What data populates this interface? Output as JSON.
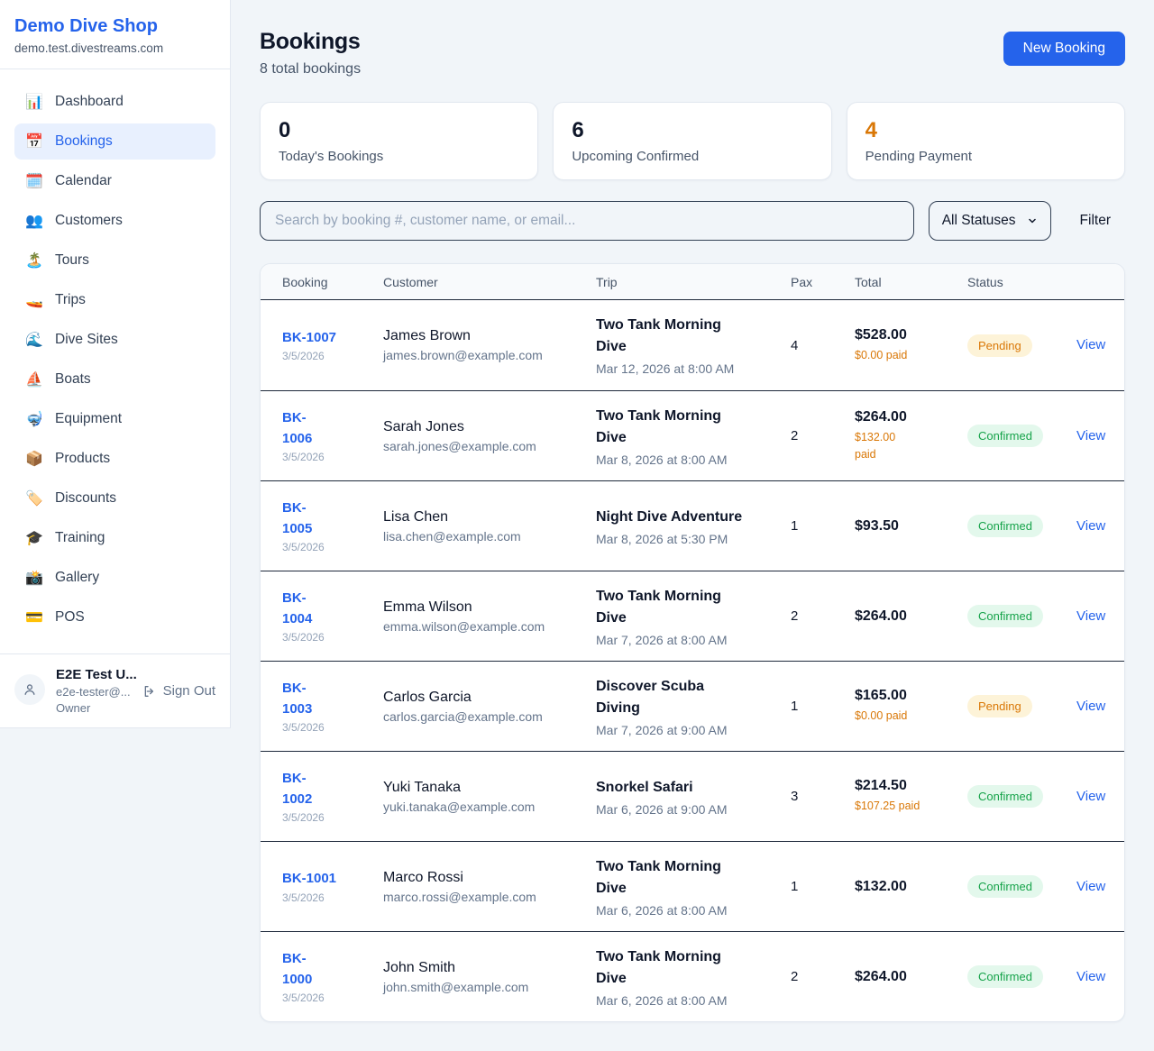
{
  "sidebar": {
    "brand": "Demo Dive Shop",
    "domain": "demo.test.divestreams.com",
    "items": [
      {
        "label": "Dashboard",
        "icon": "📊",
        "icon_name": "bar-chart-icon",
        "active": false
      },
      {
        "label": "Bookings",
        "icon": "📅",
        "icon_name": "calendar-icon",
        "active": true
      },
      {
        "label": "Calendar",
        "icon": "🗓️",
        "icon_name": "spiral-calendar-icon",
        "active": false
      },
      {
        "label": "Customers",
        "icon": "👥",
        "icon_name": "people-icon",
        "active": false
      },
      {
        "label": "Tours",
        "icon": "🏝️",
        "icon_name": "island-icon",
        "active": false
      },
      {
        "label": "Trips",
        "icon": "🚤",
        "icon_name": "speedboat-icon",
        "active": false
      },
      {
        "label": "Dive Sites",
        "icon": "🌊",
        "icon_name": "wave-icon",
        "active": false
      },
      {
        "label": "Boats",
        "icon": "⛵",
        "icon_name": "sailboat-icon",
        "active": false
      },
      {
        "label": "Equipment",
        "icon": "🤿",
        "icon_name": "diving-mask-icon",
        "active": false
      },
      {
        "label": "Products",
        "icon": "📦",
        "icon_name": "package-icon",
        "active": false
      },
      {
        "label": "Discounts",
        "icon": "🏷️",
        "icon_name": "tag-icon",
        "active": false
      },
      {
        "label": "Training",
        "icon": "🎓",
        "icon_name": "graduation-cap-icon",
        "active": false
      },
      {
        "label": "Gallery",
        "icon": "📸",
        "icon_name": "camera-icon",
        "active": false
      },
      {
        "label": "POS",
        "icon": "💳",
        "icon_name": "credit-card-icon",
        "active": false
      }
    ],
    "user": {
      "name": "E2E Test U...",
      "email": "e2e-tester@...",
      "role": "Owner",
      "sign_out_label": "Sign Out"
    }
  },
  "header": {
    "title": "Bookings",
    "subtitle": "8 total bookings",
    "new_booking_label": "New Booking"
  },
  "stats": [
    {
      "value": "0",
      "label": "Today's Bookings",
      "color": "#0f172a"
    },
    {
      "value": "6",
      "label": "Upcoming Confirmed",
      "color": "#0f172a"
    },
    {
      "value": "4",
      "label": "Pending Payment",
      "color": "#d97706"
    }
  ],
  "filters": {
    "search_placeholder": "Search by booking #, customer name, or email...",
    "status_value": "All Statuses",
    "filter_label": "Filter"
  },
  "table": {
    "columns": [
      "Booking",
      "Customer",
      "Trip",
      "Pax",
      "Total",
      "Status"
    ],
    "rows": [
      {
        "id": "BK-1007",
        "date": "3/5/2026",
        "customer": "James Brown",
        "email": "james.brown@example.com",
        "trip": "Two Tank Morning\nDive",
        "trip_time": "Mar 12, 2026 at 8:00 AM",
        "pax": "4",
        "total": "$528.00",
        "paid": "$0.00 paid",
        "status": "Pending",
        "action": "View"
      },
      {
        "id": "BK-\n1006",
        "date": "3/5/2026",
        "customer": "Sarah Jones",
        "email": "sarah.jones@example.com",
        "trip": "Two Tank Morning\nDive",
        "trip_time": "Mar 8, 2026 at 8:00 AM",
        "pax": "2",
        "total": "$264.00",
        "paid": "$132.00\npaid",
        "status": "Confirmed",
        "action": "View"
      },
      {
        "id": "BK-\n1005",
        "date": "3/5/2026",
        "customer": "Lisa Chen",
        "email": "lisa.chen@example.com",
        "trip": "Night Dive Adventure",
        "trip_time": "Mar 8, 2026 at 5:30 PM",
        "pax": "1",
        "total": "$93.50",
        "paid": "",
        "status": "Confirmed",
        "action": "View"
      },
      {
        "id": "BK-\n1004",
        "date": "3/5/2026",
        "customer": "Emma Wilson",
        "email": "emma.wilson@example.com",
        "trip": "Two Tank Morning\nDive",
        "trip_time": "Mar 7, 2026 at 8:00 AM",
        "pax": "2",
        "total": "$264.00",
        "paid": "",
        "status": "Confirmed",
        "action": "View"
      },
      {
        "id": "BK-\n1003",
        "date": "3/5/2026",
        "customer": "Carlos Garcia",
        "email": "carlos.garcia@example.com",
        "trip": "Discover Scuba\nDiving",
        "trip_time": "Mar 7, 2026 at 9:00 AM",
        "pax": "1",
        "total": "$165.00",
        "paid": "$0.00 paid",
        "status": "Pending",
        "action": "View"
      },
      {
        "id": "BK-\n1002",
        "date": "3/5/2026",
        "customer": "Yuki Tanaka",
        "email": "yuki.tanaka@example.com",
        "trip": "Snorkel Safari",
        "trip_time": "Mar 6, 2026 at 9:00 AM",
        "pax": "3",
        "total": "$214.50",
        "paid": "$107.25 paid",
        "status": "Confirmed",
        "action": "View"
      },
      {
        "id": "BK-1001",
        "date": "3/5/2026",
        "customer": "Marco Rossi",
        "email": "marco.rossi@example.com",
        "trip": "Two Tank Morning\nDive",
        "trip_time": "Mar 6, 2026 at 8:00 AM",
        "pax": "1",
        "total": "$132.00",
        "paid": "",
        "status": "Confirmed",
        "action": "View"
      },
      {
        "id": "BK-\n1000",
        "date": "3/5/2026",
        "customer": "John Smith",
        "email": "john.smith@example.com",
        "trip": "Two Tank Morning\nDive",
        "trip_time": "Mar 6, 2026 at 8:00 AM",
        "pax": "2",
        "total": "$264.00",
        "paid": "",
        "status": "Confirmed",
        "action": "View"
      }
    ]
  },
  "badges": {
    "Pending": {
      "bg": "#fdf3d8",
      "fg": "#d97706"
    },
    "Confirmed": {
      "bg": "#e3f8ec",
      "fg": "#16a34a"
    }
  },
  "colors": {
    "accent": "#2563eb",
    "warning": "#d97706",
    "success": "#16a34a",
    "page_bg": "#f1f5f9"
  }
}
